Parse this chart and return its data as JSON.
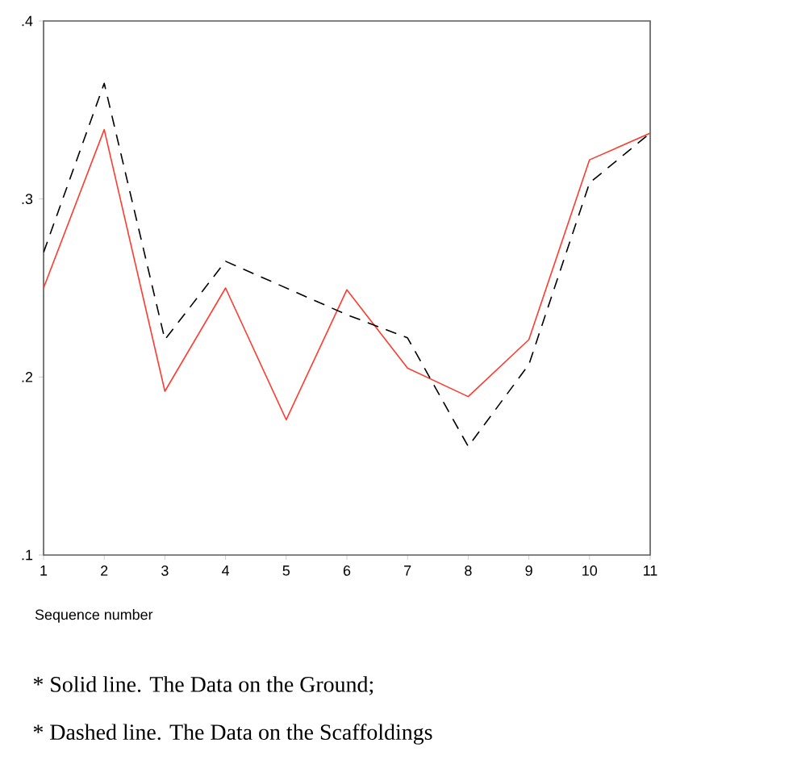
{
  "chart_data": {
    "type": "line",
    "xlabel": "Sequence number",
    "x": [
      1,
      2,
      3,
      4,
      5,
      6,
      7,
      8,
      9,
      10,
      11
    ],
    "series": [
      {
        "color": "#ff3b2f",
        "line_style": "solid",
        "values": [
          0.25,
          0.339,
          0.192,
          0.25,
          0.176,
          0.249,
          0.205,
          0.189,
          0.221,
          0.322,
          0.337
        ]
      },
      {
        "color": "#000000",
        "line_style": "dashed",
        "values": [
          0.27,
          0.365,
          0.221,
          0.265,
          0.25,
          0.235,
          0.222,
          0.161,
          0.207,
          0.309,
          0.337
        ]
      }
    ],
    "xlim": [
      1,
      11
    ],
    "ylim": [
      0.1,
      0.4
    ],
    "xticks": [
      1,
      2,
      3,
      4,
      5,
      6,
      7,
      8,
      9,
      10,
      11
    ],
    "yticks": [
      {
        "value": 0.1,
        "label": ".1"
      },
      {
        "value": 0.2,
        "label": ".2"
      },
      {
        "value": 0.3,
        "label": ".3"
      },
      {
        "value": 0.4,
        "label": ".4"
      }
    ],
    "marker": "none",
    "annotations": [
      "* Solid line. The Data on the Ground;",
      "* Dashed line. The Data on the Scaffoldings"
    ]
  }
}
